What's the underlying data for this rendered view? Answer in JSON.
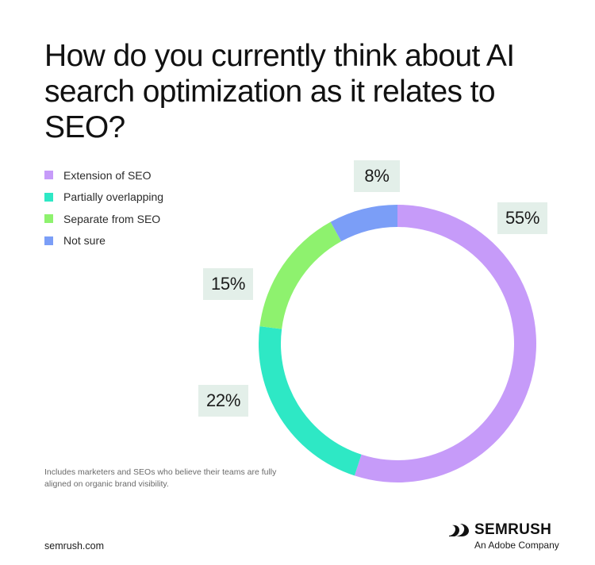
{
  "chart_data": {
    "type": "pie",
    "variant": "donut",
    "title": "How do you currently think about AI search optimization as it relates to SEO?",
    "categories": [
      "Extension of SEO",
      "Partially overlapping",
      "Separate from SEO",
      "Not sure"
    ],
    "values": [
      55,
      22,
      15,
      8
    ],
    "value_labels": [
      "55%",
      "22%",
      "15%",
      "8%"
    ],
    "colors": [
      "#c69bf9",
      "#2ee8c5",
      "#8ef26e",
      "#7b9ef7"
    ],
    "legend_position": "top-left",
    "note": "Includes marketers and SEOs who believe their teams are fully aligned on organic brand visibility."
  },
  "footer": {
    "site": "semrush.com",
    "brand_name": "SEMRUSH",
    "brand_tagline": "An Adobe Company",
    "logo_icon": "semrush-flame-icon"
  }
}
